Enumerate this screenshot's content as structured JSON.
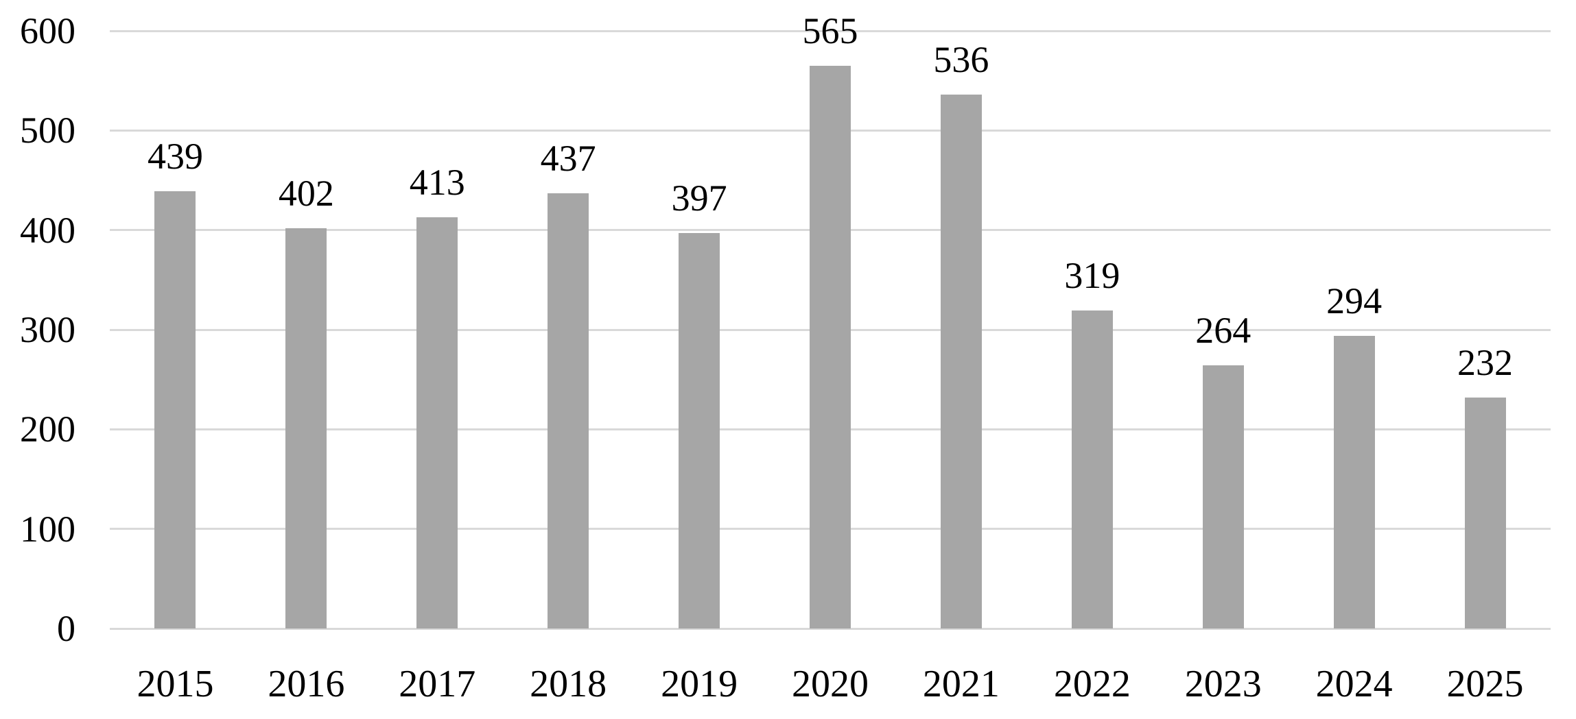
{
  "chart_data": {
    "type": "bar",
    "title": "",
    "xlabel": "",
    "ylabel": "",
    "categories": [
      "2015",
      "2016",
      "2017",
      "2018",
      "2019",
      "2020",
      "2021",
      "2022",
      "2023",
      "2024",
      "2025"
    ],
    "values": [
      439,
      402,
      413,
      437,
      397,
      565,
      536,
      319,
      264,
      294,
      232
    ],
    "data_labels": [
      439,
      402,
      413,
      437,
      397,
      565,
      536,
      319,
      264,
      294,
      232
    ],
    "ylim": [
      0,
      600
    ],
    "ytick_step": 100,
    "yticks": [
      "0",
      "100",
      "200",
      "300",
      "400",
      "500",
      "600"
    ],
    "grid": true,
    "legend": "none",
    "colors": {
      "bar": "#a6a6a6",
      "gridline": "#d9d9d9",
      "axis_line": "#d9d9d9",
      "text": "#000000",
      "background": "#ffffff"
    }
  }
}
